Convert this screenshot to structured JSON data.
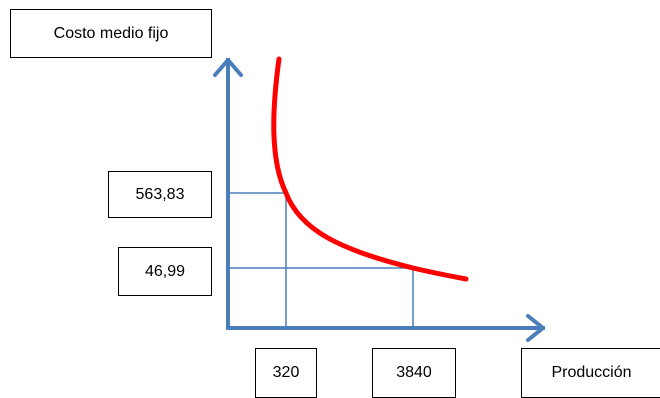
{
  "chart_data": {
    "type": "line",
    "ylabel": "Costo medio fijo",
    "xlabel": "Producción",
    "x_ticks": [
      {
        "value": 320,
        "label": "320"
      },
      {
        "value": 3840,
        "label": "3840"
      }
    ],
    "y_ticks": [
      {
        "value": 563.83,
        "label": "563,83"
      },
      {
        "value": 46.99,
        "label": "46,99"
      }
    ],
    "series": [
      {
        "x": [
          320,
          3840
        ],
        "y": [
          563.83,
          46.99
        ]
      }
    ],
    "colors": {
      "curve": "#ff0000",
      "axes": "#4a7ebb",
      "guides": "#4a7ebb"
    }
  }
}
